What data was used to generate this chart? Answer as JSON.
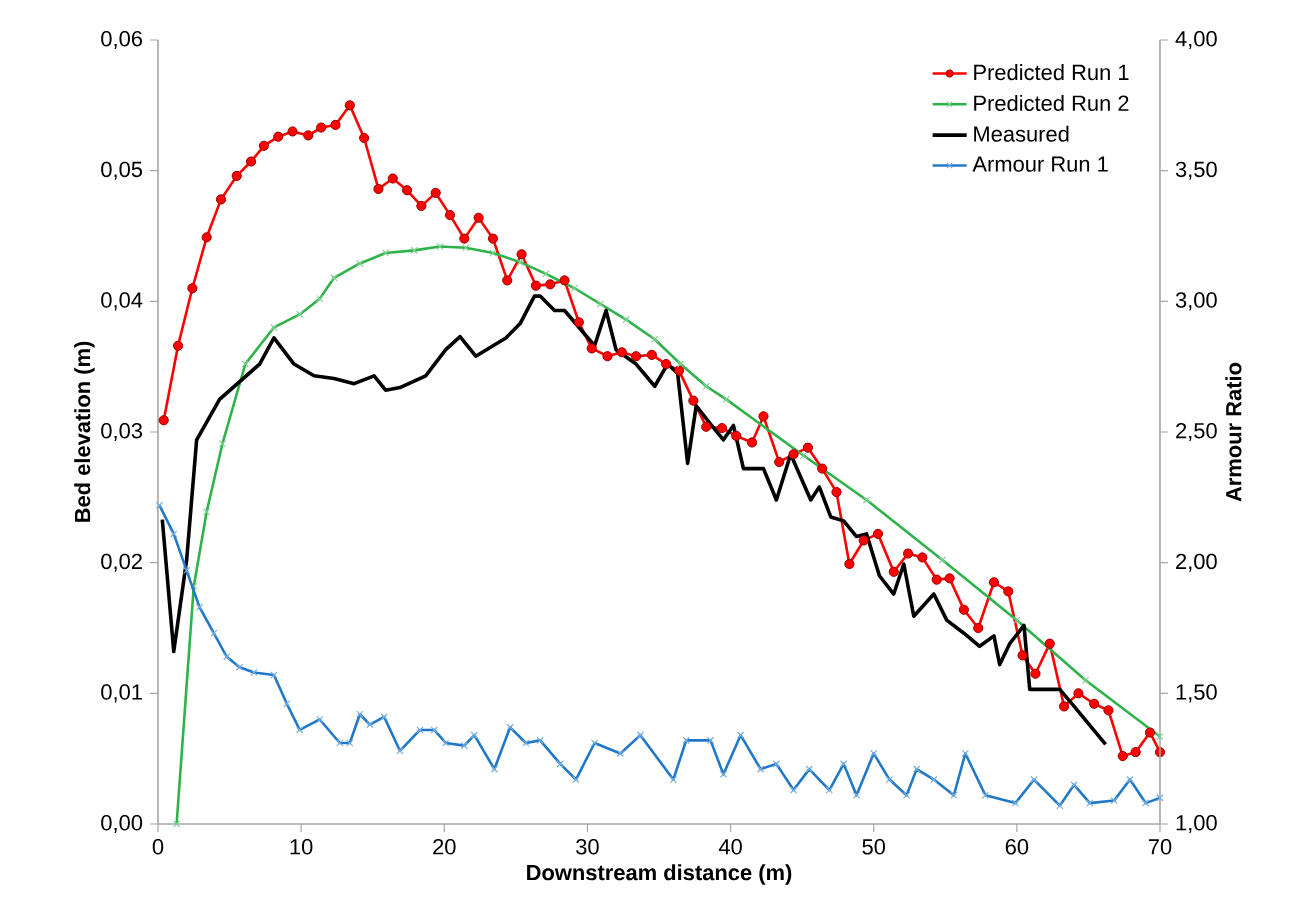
{
  "chart_data": {
    "type": "line",
    "xlabel": "Downstream distance (m)",
    "ylabel": "Bed elevation (m)",
    "y2label": "Armour Ratio",
    "xlim": [
      0,
      70
    ],
    "xticks": [
      0,
      10,
      20,
      30,
      40,
      50,
      60,
      70
    ],
    "ylim": [
      0,
      0.06
    ],
    "yticks": [
      {
        "value": 0,
        "label": "0,00"
      },
      {
        "value": 0.01,
        "label": "0,01"
      },
      {
        "value": 0.02,
        "label": "0,02"
      },
      {
        "value": 0.03,
        "label": "0,03"
      },
      {
        "value": 0.04,
        "label": "0,04"
      },
      {
        "value": 0.05,
        "label": "0,05"
      },
      {
        "value": 0.06,
        "label": "0,06"
      }
    ],
    "y2lim": [
      1,
      4
    ],
    "y2ticks": [
      {
        "value": 1,
        "label": "1,00"
      },
      {
        "value": 1.5,
        "label": "1,50"
      },
      {
        "value": 2,
        "label": "2,00"
      },
      {
        "value": 2.5,
        "label": "2,50"
      },
      {
        "value": 3,
        "label": "3,00"
      },
      {
        "value": 3.5,
        "label": "3,50"
      },
      {
        "value": 4,
        "label": "4,00"
      }
    ],
    "grid": false,
    "legend": "top right",
    "series": [
      {
        "name": "Predicted Run 1",
        "color": "#ff0000",
        "marker": "circle",
        "x": [
          0.4,
          1.4,
          2.4,
          3.4,
          4.4,
          5.5,
          6.5,
          7.4,
          8.4,
          9.4,
          10.5,
          11.4,
          12.4,
          13.4,
          14.4,
          15.4,
          16.4,
          17.4,
          18.4,
          19.4,
          20.4,
          21.4,
          22.4,
          23.4,
          24.4,
          25.4,
          26.4,
          27.4,
          28.4,
          29.4,
          30.3,
          31.4,
          32.4,
          33.4,
          34.5,
          35.5,
          36.4,
          37.4,
          38.3,
          39.4,
          40.4,
          41.5,
          42.3,
          43.4,
          44.4,
          45.4,
          46.4,
          47.4,
          48.3,
          49.3,
          50.3,
          51.4,
          52.4,
          53.4,
          54.4,
          55.3,
          56.3,
          57.3,
          58.4,
          59.4,
          60.4,
          61.3,
          62.3,
          63.3,
          64.3,
          65.4,
          66.4,
          67.4,
          68.3,
          69.3,
          70
        ],
        "values": [
          0.0309,
          0.0366,
          0.041,
          0.0449,
          0.0478,
          0.0496,
          0.0507,
          0.0519,
          0.0526,
          0.053,
          0.0527,
          0.0533,
          0.0535,
          0.055,
          0.0525,
          0.0486,
          0.0494,
          0.0485,
          0.0473,
          0.0483,
          0.0466,
          0.0448,
          0.0464,
          0.0448,
          0.0416,
          0.0436,
          0.0412,
          0.0413,
          0.0416,
          0.0384,
          0.0364,
          0.0358,
          0.0361,
          0.0358,
          0.0359,
          0.0352,
          0.0347,
          0.0324,
          0.0304,
          0.0303,
          0.0297,
          0.0292,
          0.0312,
          0.0277,
          0.0283,
          0.0288,
          0.0272,
          0.0254,
          0.0199,
          0.0217,
          0.0222,
          0.0193,
          0.0207,
          0.0204,
          0.0187,
          0.0188,
          0.0164,
          0.015,
          0.0185,
          0.0178,
          0.0129,
          0.0115,
          0.0138,
          0.009,
          0.01,
          0.0092,
          0.0087,
          0.0052,
          0.0055,
          0.007,
          0.0055
        ]
      },
      {
        "name": "Predicted Run 2",
        "color": "#2db34a",
        "marker": "cross",
        "x": [
          1.3,
          2.5,
          3.4,
          4.5,
          6.1,
          8.1,
          9.9,
          11.3,
          12.3,
          14.1,
          15.9,
          17.9,
          19.7,
          21.5,
          23.4,
          25.3,
          27.1,
          29.1,
          30.9,
          32.7,
          34.7,
          36.5,
          38.3,
          39.7,
          45.1,
          49.5,
          54.8,
          60,
          64.8,
          70
        ],
        "values": [
          0,
          0.0182,
          0.0239,
          0.0291,
          0.0352,
          0.038,
          0.039,
          0.0402,
          0.0418,
          0.0429,
          0.0437,
          0.0439,
          0.0442,
          0.0441,
          0.0437,
          0.043,
          0.0421,
          0.041,
          0.0398,
          0.0386,
          0.0371,
          0.0352,
          0.0335,
          0.0325,
          0.0282,
          0.0248,
          0.0202,
          0.0156,
          0.011,
          0.0067
        ]
      },
      {
        "name": "Measured",
        "color": "#000000",
        "marker": "none",
        "x": [
          0.3,
          1.1,
          2,
          2.7,
          4.3,
          7.1,
          8.1,
          9.5,
          10.9,
          12.3,
          13.7,
          15.1,
          15.9,
          16.9,
          18.7,
          20.1,
          21.1,
          22.2,
          24.3,
          25.3,
          26.3,
          26.7,
          27.7,
          28.4,
          30.5,
          31.3,
          32,
          33.4,
          34.7,
          35.6,
          36.3,
          37,
          37.6,
          38.6,
          39.5,
          40.2,
          40.9,
          42.3,
          43.2,
          44.2,
          45.6,
          46.2,
          47,
          47.9,
          48.8,
          49.5,
          50.4,
          51.4,
          52.1,
          52.8,
          54.2,
          55.1,
          56.3,
          57.4,
          58.4,
          58.8,
          59.5,
          60.5,
          60.9,
          63,
          64,
          66.2
        ],
        "values": [
          0.0233,
          0.0132,
          0.0202,
          0.0294,
          0.0325,
          0.0352,
          0.0372,
          0.0352,
          0.0343,
          0.0341,
          0.0337,
          0.0343,
          0.0332,
          0.0334,
          0.0343,
          0.0363,
          0.0373,
          0.0358,
          0.0372,
          0.0383,
          0.0404,
          0.0404,
          0.0393,
          0.0393,
          0.0366,
          0.0393,
          0.0363,
          0.0352,
          0.0335,
          0.0352,
          0.0345,
          0.0276,
          0.032,
          0.0306,
          0.0294,
          0.0305,
          0.0272,
          0.0272,
          0.0248,
          0.0283,
          0.0248,
          0.0258,
          0.0235,
          0.0232,
          0.022,
          0.0222,
          0.019,
          0.0176,
          0.0199,
          0.0159,
          0.0176,
          0.0156,
          0.0146,
          0.0136,
          0.0144,
          0.0122,
          0.0138,
          0.0152,
          0.0103,
          0.0103,
          0.009,
          0.0061
        ]
      },
      {
        "name": "Armour Run 1",
        "color": "#1f78c8",
        "marker": "cross",
        "axis": "y2",
        "x": [
          0.1,
          1.1,
          2,
          2.9,
          3.9,
          4.8,
          5.7,
          6.7,
          8.1,
          9,
          9.9,
          11.3,
          12.7,
          13.4,
          14.1,
          14.8,
          15.8,
          16.9,
          18.3,
          19.3,
          20.1,
          21.4,
          22.1,
          23.5,
          24.6,
          25.7,
          26.7,
          28.1,
          29.2,
          30.5,
          32.3,
          33.7,
          36,
          36.9,
          38.6,
          39.5,
          40.7,
          42.1,
          43.2,
          44.4,
          45.5,
          46.9,
          47.9,
          48.8,
          50,
          51.1,
          52.3,
          53,
          54.2,
          55.6,
          56.4,
          57.8,
          59.9,
          61.2,
          63,
          64,
          65.1,
          66.8,
          67.9,
          69,
          70
        ],
        "values": [
          2.22,
          2.11,
          1.97,
          1.83,
          1.73,
          1.64,
          1.6,
          1.58,
          1.57,
          1.46,
          1.36,
          1.4,
          1.31,
          1.31,
          1.42,
          1.38,
          1.41,
          1.28,
          1.36,
          1.36,
          1.31,
          1.3,
          1.34,
          1.21,
          1.37,
          1.31,
          1.32,
          1.23,
          1.17,
          1.31,
          1.27,
          1.34,
          1.17,
          1.32,
          1.32,
          1.19,
          1.34,
          1.21,
          1.23,
          1.13,
          1.21,
          1.13,
          1.23,
          1.11,
          1.27,
          1.17,
          1.11,
          1.21,
          1.17,
          1.11,
          1.27,
          1.11,
          1.08,
          1.17,
          1.07,
          1.15,
          1.08,
          1.09,
          1.17,
          1.08,
          1.1
        ]
      }
    ]
  }
}
